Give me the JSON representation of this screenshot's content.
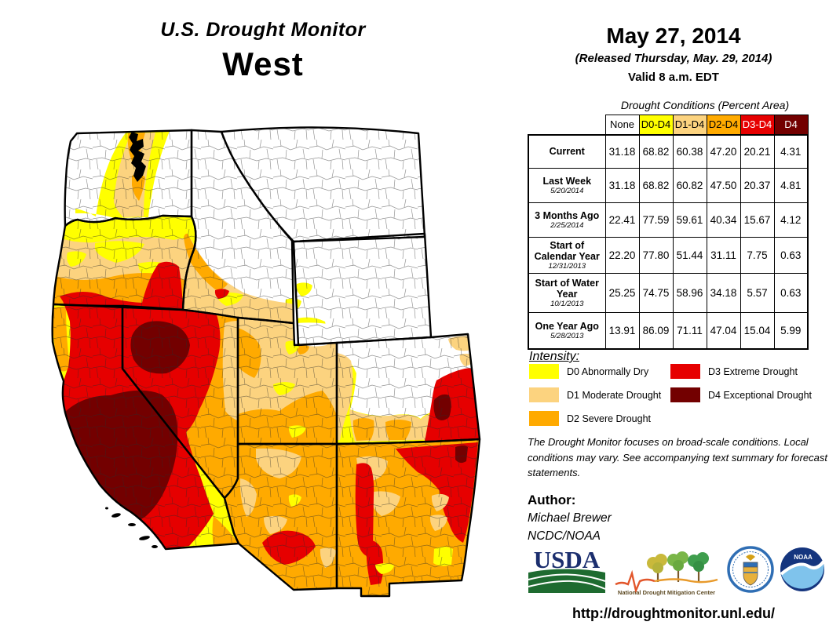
{
  "title": {
    "line1": "U.S. Drought Monitor",
    "region": "West"
  },
  "date_block": {
    "date": "May 27, 2014",
    "released": "(Released Thursday, May. 29, 2014)",
    "valid": "Valid  8 a.m. EDT"
  },
  "table": {
    "caption": "Drought Conditions (Percent Area)",
    "columns": [
      "None",
      "D0-D4",
      "D1-D4",
      "D2-D4",
      "D3-D4",
      "D4"
    ],
    "column_colors": [
      "#FFFFFF",
      "#FFFF00",
      "#FCD37F",
      "#FFAA00",
      "#E60000",
      "#730000"
    ],
    "column_text_colors": [
      "#000000",
      "#000000",
      "#000000",
      "#000000",
      "#FFFFFF",
      "#FFFFFF"
    ],
    "rows": [
      {
        "label": "Current",
        "date": "",
        "values": [
          "31.18",
          "68.82",
          "60.38",
          "47.20",
          "20.21",
          "4.31"
        ]
      },
      {
        "label": "Last Week",
        "date": "5/20/2014",
        "values": [
          "31.18",
          "68.82",
          "60.82",
          "47.50",
          "20.37",
          "4.81"
        ]
      },
      {
        "label": "3 Months Ago",
        "date": "2/25/2014",
        "values": [
          "22.41",
          "77.59",
          "59.61",
          "40.34",
          "15.67",
          "4.12"
        ]
      },
      {
        "label": "Start of Calendar Year",
        "date": "12/31/2013",
        "values": [
          "22.20",
          "77.80",
          "51.44",
          "31.11",
          "7.75",
          "0.63"
        ]
      },
      {
        "label": "Start of Water Year",
        "date": "10/1/2013",
        "values": [
          "25.25",
          "74.75",
          "58.96",
          "34.18",
          "5.57",
          "0.63"
        ]
      },
      {
        "label": "One Year Ago",
        "date": "5/28/2013",
        "values": [
          "13.91",
          "86.09",
          "71.11",
          "47.04",
          "15.04",
          "5.99"
        ]
      }
    ]
  },
  "legend": {
    "title": "Intensity:",
    "items": [
      {
        "code": "D0",
        "label": "D0 Abnormally Dry",
        "color": "#FFFF00"
      },
      {
        "code": "D1",
        "label": "D1 Moderate Drought",
        "color": "#FCD37F"
      },
      {
        "code": "D2",
        "label": "D2 Severe Drought",
        "color": "#FFAA00"
      },
      {
        "code": "D3",
        "label": "D3 Extreme Drought",
        "color": "#E60000"
      },
      {
        "code": "D4",
        "label": "D4 Exceptional Drought",
        "color": "#730000"
      }
    ]
  },
  "disclaimer": "The Drought Monitor focuses on broad-scale conditions. Local conditions may vary. See accompanying text summary for forecast statements.",
  "author": {
    "heading": "Author:",
    "name": "Michael Brewer",
    "org": "NCDC/NOAA"
  },
  "logos": {
    "usda": {
      "label": "USDA"
    },
    "ndmc": {
      "label": "National Drought Mitigation Center"
    },
    "noaa": {
      "label": "NOAA"
    }
  },
  "url": "http://droughtmonitor.unl.edu/"
}
